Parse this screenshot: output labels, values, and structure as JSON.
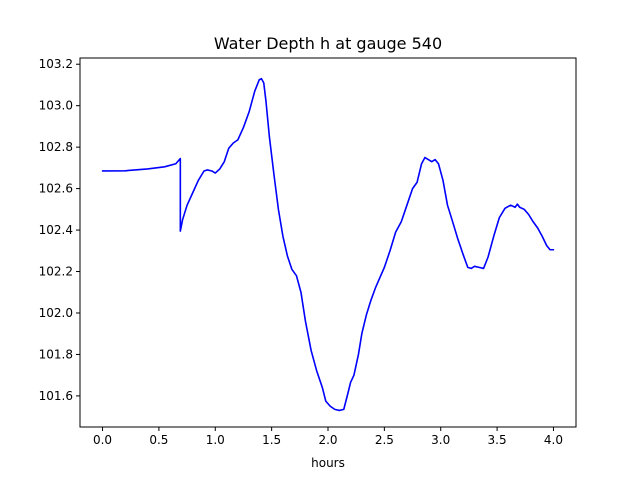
{
  "chart_data": {
    "type": "line",
    "title": "Water Depth h at gauge 540",
    "xlabel": "hours",
    "ylabel": "",
    "xlim": [
      -0.2,
      4.2
    ],
    "ylim": [
      101.45,
      103.23
    ],
    "xticks": [
      0.0,
      0.5,
      1.0,
      1.5,
      2.0,
      2.5,
      3.0,
      3.5,
      4.0
    ],
    "xtick_labels": [
      "0.0",
      "0.5",
      "1.0",
      "1.5",
      "2.0",
      "2.5",
      "3.0",
      "3.5",
      "4.0"
    ],
    "yticks": [
      101.6,
      101.8,
      102.0,
      102.2,
      102.4,
      102.6,
      102.8,
      103.0,
      103.2
    ],
    "ytick_labels": [
      "101.6",
      "101.8",
      "102.0",
      "102.2",
      "102.4",
      "102.6",
      "102.8",
      "103.0",
      "103.2"
    ],
    "grid": false,
    "series": [
      {
        "color": "#0000ff",
        "x": [
          0.0,
          0.2,
          0.4,
          0.55,
          0.65,
          0.69,
          0.69,
          0.71,
          0.75,
          0.8,
          0.85,
          0.9,
          0.93,
          0.97,
          1.0,
          1.04,
          1.08,
          1.12,
          1.16,
          1.2,
          1.25,
          1.3,
          1.35,
          1.39,
          1.41,
          1.43,
          1.45,
          1.48,
          1.52,
          1.56,
          1.6,
          1.64,
          1.68,
          1.72,
          1.76,
          1.8,
          1.85,
          1.9,
          1.95,
          1.98,
          2.02,
          2.06,
          2.1,
          2.14,
          2.18,
          2.2,
          2.23,
          2.27,
          2.3,
          2.34,
          2.38,
          2.42,
          2.46,
          2.5,
          2.55,
          2.6,
          2.65,
          2.7,
          2.75,
          2.79,
          2.83,
          2.86,
          2.89,
          2.92,
          2.95,
          2.98,
          3.02,
          3.06,
          3.1,
          3.15,
          3.2,
          3.24,
          3.27,
          3.3,
          3.34,
          3.38,
          3.42,
          3.47,
          3.52,
          3.57,
          3.62,
          3.66,
          3.68,
          3.7,
          3.74,
          3.78,
          3.82,
          3.86,
          3.9,
          3.94,
          3.97,
          4.0
        ],
        "y": [
          102.685,
          102.686,
          102.695,
          102.705,
          102.72,
          102.745,
          102.395,
          102.45,
          102.52,
          102.58,
          102.64,
          102.685,
          102.69,
          102.685,
          102.675,
          102.695,
          102.73,
          102.795,
          102.82,
          102.835,
          102.895,
          102.97,
          103.07,
          103.125,
          103.13,
          103.11,
          103.02,
          102.85,
          102.67,
          102.5,
          102.37,
          102.275,
          102.21,
          102.18,
          102.1,
          101.96,
          101.82,
          101.72,
          101.64,
          101.575,
          101.55,
          101.535,
          101.53,
          101.535,
          101.62,
          101.665,
          101.7,
          101.8,
          101.9,
          101.99,
          102.06,
          102.12,
          102.17,
          102.22,
          102.3,
          102.39,
          102.44,
          102.52,
          102.6,
          102.63,
          102.72,
          102.75,
          102.74,
          102.73,
          102.74,
          102.72,
          102.64,
          102.52,
          102.45,
          102.36,
          102.28,
          102.22,
          102.215,
          102.225,
          102.22,
          102.215,
          102.27,
          102.37,
          102.46,
          102.505,
          102.52,
          102.51,
          102.525,
          102.51,
          102.5,
          102.475,
          102.44,
          102.41,
          102.37,
          102.325,
          102.305,
          102.305
        ]
      }
    ]
  }
}
